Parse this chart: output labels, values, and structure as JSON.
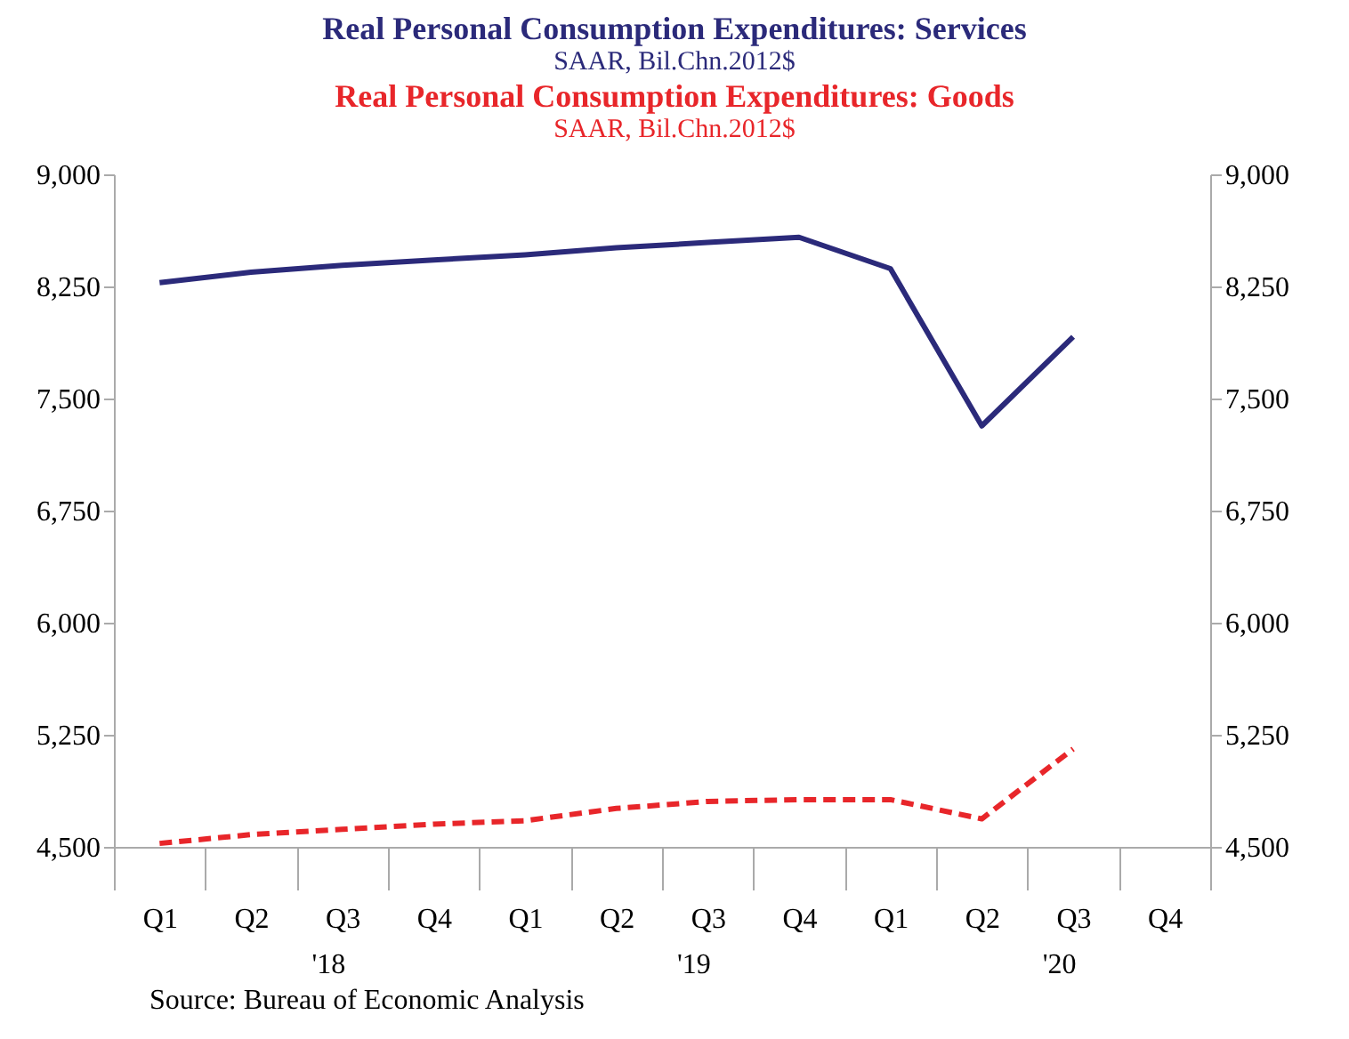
{
  "chart_data": {
    "type": "line",
    "subtitle": "SAAR, Bil.Chn.2012$",
    "categories": [
      "Q1",
      "Q2",
      "Q3",
      "Q4",
      "Q1",
      "Q2",
      "Q3",
      "Q4",
      "Q1",
      "Q2",
      "Q3",
      "Q4"
    ],
    "series": [
      {
        "name": "Real Personal Consumption Expenditures: Services",
        "color": "#2b2a7a",
        "line_style": "solid",
        "values": [
          8275,
          8345,
          8392,
          8427,
          8462,
          8509,
          8544,
          8579,
          8369,
          7317,
          7913,
          null
        ]
      },
      {
        "name": "Real Personal Consumption Expenditures: Goods",
        "color": "#e8262a",
        "line_style": "dashed",
        "values": [
          4523,
          4582,
          4617,
          4652,
          4675,
          4757,
          4804,
          4816,
          4816,
          4687,
          5155,
          null
        ]
      }
    ],
    "ylim": [
      4500,
      9000
    ],
    "yticks": [
      {
        "value": 4500,
        "label": "4,500"
      },
      {
        "value": 5250,
        "label": "5,250"
      },
      {
        "value": 6000,
        "label": "6,000"
      },
      {
        "value": 6750,
        "label": "6,750"
      },
      {
        "value": 7500,
        "label": "7,500"
      },
      {
        "value": 8250,
        "label": "8,250"
      },
      {
        "value": 9000,
        "label": "9,000"
      }
    ],
    "y2lim": [
      4500,
      9000
    ],
    "y2ticks": [
      {
        "value": 4500,
        "label": "4,500"
      },
      {
        "value": 5250,
        "label": "5,250"
      },
      {
        "value": 6000,
        "label": "6,000"
      },
      {
        "value": 6750,
        "label": "6,750"
      },
      {
        "value": 7500,
        "label": "7,500"
      },
      {
        "value": 8250,
        "label": "8,250"
      },
      {
        "value": 9000,
        "label": "9,000"
      }
    ],
    "legend": "top",
    "grid": false,
    "marker": "none",
    "annotations": [
      "'18",
      "'19",
      "'20",
      "Source:  Bureau of Economic Analysis"
    ]
  }
}
